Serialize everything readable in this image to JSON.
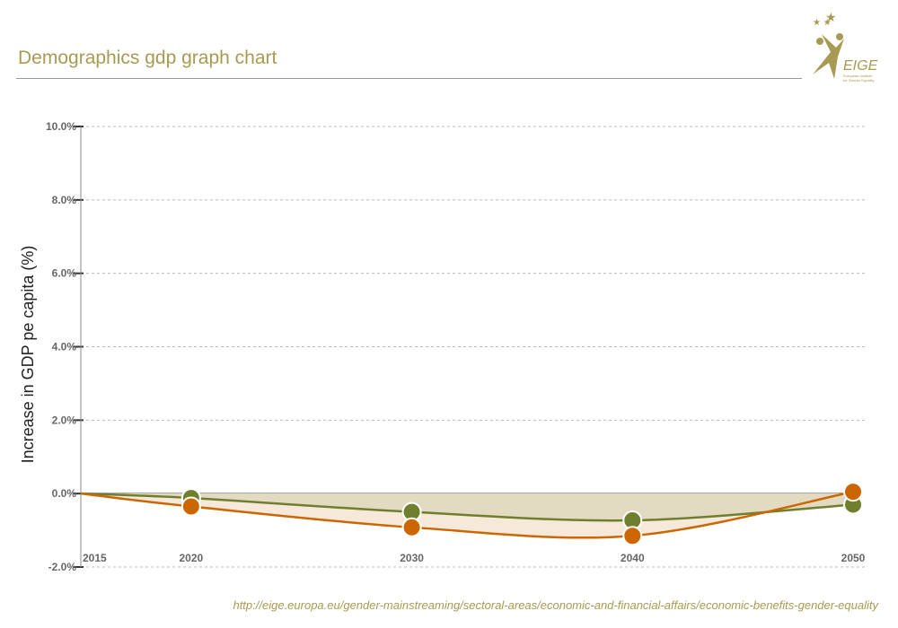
{
  "header": {
    "title": "Demographics gdp graph chart"
  },
  "logo": {
    "text": "EIGE",
    "subtitle": "European Institute for Gender Equality"
  },
  "footer": {
    "source": "http://eige.europa.eu/gender-mainstreaming/sectoral-areas/economic-and-financial-affairs/economic-benefits-gender-equality"
  },
  "chart_data": {
    "type": "area",
    "title": "",
    "xlabel": "",
    "ylabel": "Increase in GDP pe capita (%)",
    "x": [
      2015,
      2020,
      2030,
      2040,
      2050
    ],
    "x_tick_labels": [
      "2015",
      "2020",
      "2030",
      "2040",
      "2050"
    ],
    "y_tick_labels": [
      "10.0%",
      "8.0%",
      "6.0%",
      "4.0%",
      "2.0%",
      "0.0%",
      "-2.0%"
    ],
    "ylim": [
      -2,
      10
    ],
    "grid": true,
    "series": [
      {
        "color": "#6f7f2e",
        "fill": "#e3dac2",
        "values": [
          0,
          -0.12,
          -0.5,
          -0.73,
          -0.3
        ]
      },
      {
        "color": "#cc6600",
        "fill": "#f6e9da",
        "values": [
          0,
          -0.35,
          -0.92,
          -1.15,
          0.05
        ]
      }
    ]
  },
  "colors": {
    "accent": "#a89a52"
  }
}
